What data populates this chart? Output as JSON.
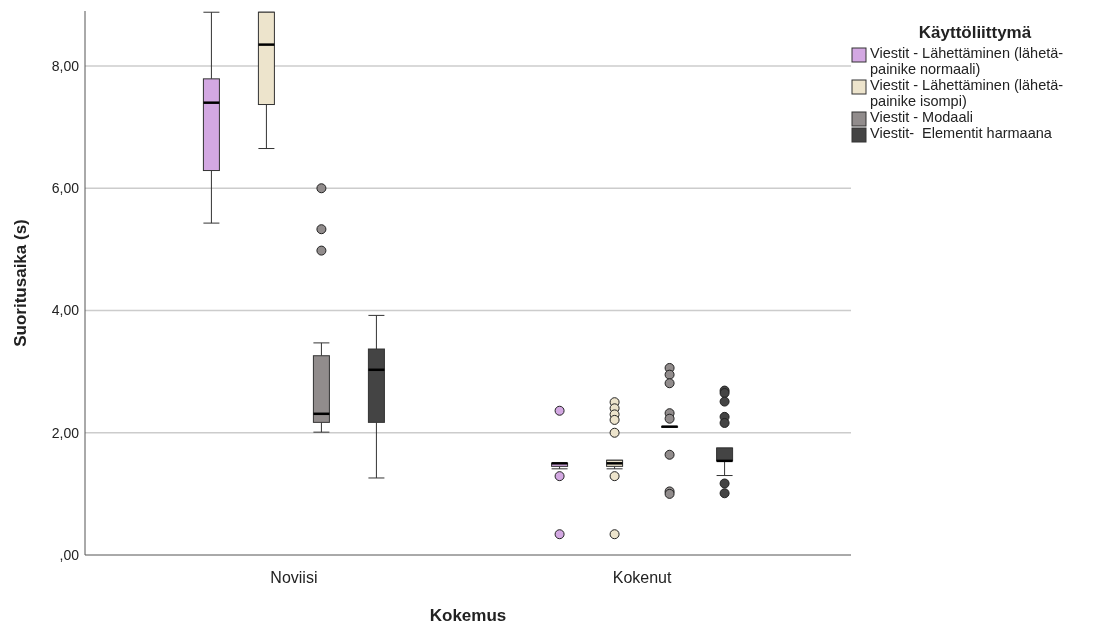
{
  "chart_data": {
    "type": "box",
    "xlabel": "Kokemus",
    "ylabel": "Suoritusaika (s)",
    "legend_title": "Käyttöliittymä",
    "legend": "top right",
    "grid": "y",
    "marker": "circle",
    "categories": [
      "Noviisi",
      "Kokenut"
    ],
    "ylim": [
      0,
      8.9
    ],
    "yticks": [
      {
        "value": 0,
        "label": ",00"
      },
      {
        "value": 2,
        "label": "2,00"
      },
      {
        "value": 4,
        "label": "4,00"
      },
      {
        "value": 6,
        "label": "6,00"
      },
      {
        "value": 8,
        "label": "8,00"
      }
    ],
    "series": [
      {
        "name": "Viestit - Lähettäminen (lähetä-painike normaali)",
        "color": "#d3a8e2",
        "boxes": [
          {
            "low": 5.43,
            "q1": 6.29,
            "median": 7.4,
            "q3": 7.79,
            "high": 8.88
          },
          {
            "low": 1.41,
            "q1": 1.45,
            "median": 1.5,
            "q3": 1.5,
            "high": 1.5,
            "outliers": [
              1.29,
              2.36,
              0.34
            ]
          }
        ]
      },
      {
        "name": "Viestit - Lähettäminen (lähetä-painike isompi)",
        "color": "#ede4cc",
        "boxes": [
          {
            "low": 6.65,
            "q1": 7.37,
            "median": 8.35,
            "q3": 8.88,
            "high": 8.88
          },
          {
            "low": 1.41,
            "q1": 1.45,
            "median": 1.5,
            "q3": 1.55,
            "high": 1.55,
            "outliers": [
              1.29,
              2.5,
              2.4,
              2.3,
              2.21,
              2.0,
              0.34
            ]
          }
        ]
      },
      {
        "name": "Viestit - Modaali",
        "color": "#918c8c",
        "boxes": [
          {
            "low": 2.01,
            "q1": 2.17,
            "median": 2.31,
            "q3": 3.26,
            "high": 3.47,
            "outliers": [
              6.0,
              5.33,
              4.98
            ]
          },
          {
            "low": 2.1,
            "q1": 2.1,
            "median": 2.1,
            "q3": 2.1,
            "high": 2.1,
            "outliers": [
              3.06,
              2.95,
              2.81,
              2.32,
              2.23,
              1.64,
              1.04,
              1.0
            ]
          }
        ]
      },
      {
        "name": "Viestit-  Elementit harmaana",
        "color": "#444444",
        "boxes": [
          {
            "low": 1.26,
            "q1": 2.17,
            "median": 3.03,
            "q3": 3.37,
            "high": 3.92
          },
          {
            "low": 1.3,
            "q1": 1.54,
            "median": 1.54,
            "q3": 1.75,
            "high": 1.75,
            "outliers": [
              2.69,
              2.65,
              2.51,
              2.26,
              2.16,
              1.17,
              1.01
            ]
          }
        ]
      }
    ]
  }
}
